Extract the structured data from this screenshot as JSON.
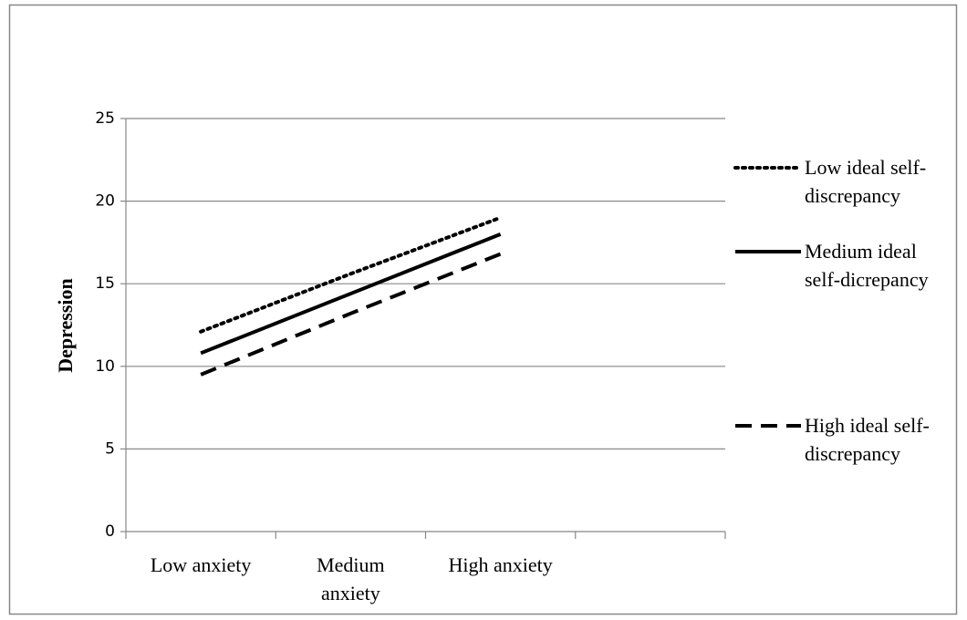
{
  "chart_data": {
    "type": "line",
    "y_label": "Depression",
    "categories": [
      "Low anxiety",
      "Medium anxiety",
      "High anxiety",
      null
    ],
    "series": [
      {
        "name": "Low ideal self-discrepancy",
        "color": "#000000",
        "dash": "dotted",
        "values": [
          12.1,
          15.6,
          19.0,
          null
        ]
      },
      {
        "name": "Medium ideal self-dicrepancy",
        "color": "#000000",
        "dash": "solid",
        "values": [
          10.8,
          14.4,
          18.0,
          null
        ]
      },
      {
        "name": "High ideal self-discrepancy",
        "color": "#000000",
        "dash": "dashed",
        "values": [
          9.5,
          13.2,
          16.8,
          null
        ]
      }
    ],
    "ylim": [
      0,
      25
    ],
    "yticks": [
      0,
      5,
      10,
      15,
      20,
      25
    ],
    "grid": true,
    "legend": "right"
  }
}
